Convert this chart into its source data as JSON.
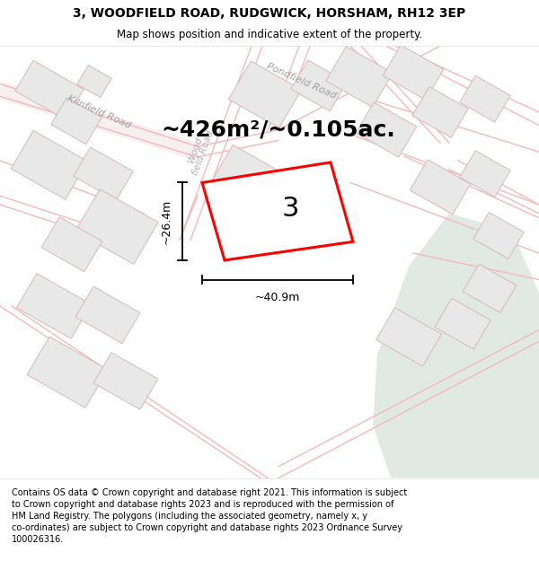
{
  "title": "3, WOODFIELD ROAD, RUDGWICK, HORSHAM, RH12 3EP",
  "subtitle": "Map shows position and indicative extent of the property.",
  "area_label": "~426m²/~0.105ac.",
  "property_number": "3",
  "dim_width": "~40.9m",
  "dim_height": "~26.4m",
  "footer": "Contains OS data © Crown copyright and database right 2021. This information is subject\nto Crown copyright and database rights 2023 and is reproduced with the permission of\nHM Land Registry. The polygons (including the associated geometry, namely x, y\nco-ordinates) are subject to Crown copyright and database rights 2023 Ordnance Survey\n100026316.",
  "bg_color": "#ffffff",
  "map_bg": "#ffffff",
  "plot_color": "#ff0000",
  "road_color": "#f5b8b8",
  "road_edge_color": "#f0a0a0",
  "building_face": "#e8e8e8",
  "building_edge": "#d8b8b8",
  "green_fill": "#cdddd0",
  "label_color": "#aaaaaa",
  "title_fontsize": 10,
  "subtitle_fontsize": 8.5,
  "area_fontsize": 18,
  "prop_num_fontsize": 22,
  "dim_fontsize": 9,
  "footer_fontsize": 7
}
